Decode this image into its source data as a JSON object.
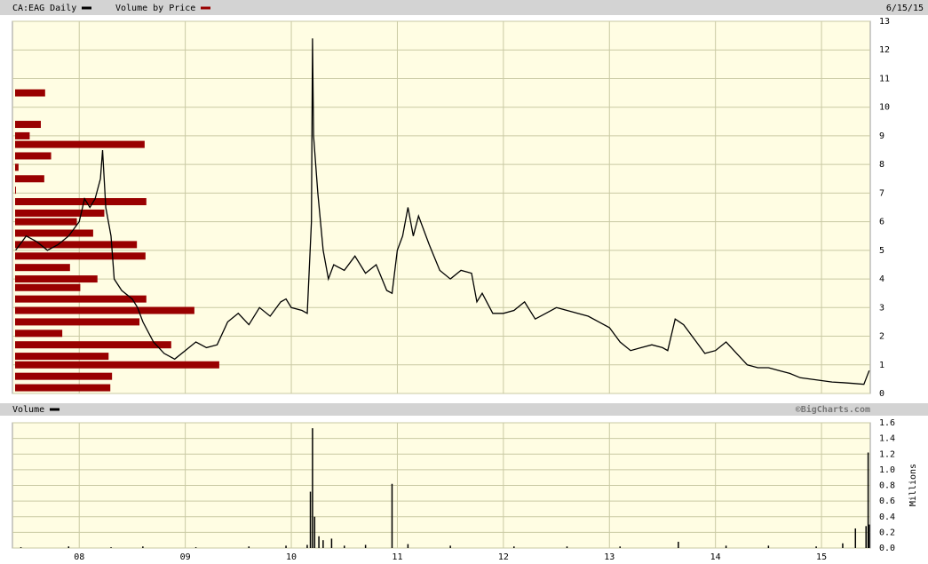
{
  "chart_data": [
    {
      "type": "line",
      "date": "6/15/15",
      "grid": true,
      "series": [
        {
          "name": "CA:EAG Daily",
          "color": "#000000",
          "x": [
            2007.4,
            2007.5,
            2007.6,
            2007.7,
            2007.8,
            2007.9,
            2008.0,
            2008.05,
            2008.1,
            2008.15,
            2008.2,
            2008.22,
            2008.25,
            2008.3,
            2008.33,
            2008.4,
            2008.5,
            2008.55,
            2008.6,
            2008.7,
            2008.8,
            2008.9,
            2009.0,
            2009.1,
            2009.2,
            2009.3,
            2009.4,
            2009.5,
            2009.6,
            2009.7,
            2009.8,
            2009.9,
            2009.95,
            2010.0,
            2010.1,
            2010.15,
            2010.19,
            2010.2,
            2010.21,
            2010.25,
            2010.3,
            2010.35,
            2010.4,
            2010.5,
            2010.6,
            2010.7,
            2010.8,
            2010.9,
            2010.95,
            2011.0,
            2011.05,
            2011.1,
            2011.15,
            2011.2,
            2011.3,
            2011.4,
            2011.5,
            2011.6,
            2011.7,
            2011.75,
            2011.8,
            2011.9,
            2012.0,
            2012.1,
            2012.2,
            2012.3,
            2012.4,
            2012.5,
            2012.6,
            2012.7,
            2012.8,
            2012.9,
            2013.0,
            2013.1,
            2013.2,
            2013.3,
            2013.4,
            2013.5,
            2013.55,
            2013.62,
            2013.7,
            2013.8,
            2013.9,
            2014.0,
            2014.1,
            2014.2,
            2014.3,
            2014.4,
            2014.5,
            2014.6,
            2014.7,
            2014.8,
            2014.9,
            2015.0,
            2015.1,
            2015.2,
            2015.3,
            2015.4,
            2015.45
          ],
          "values": [
            5.0,
            5.5,
            5.3,
            5.0,
            5.2,
            5.5,
            6.0,
            6.8,
            6.5,
            6.8,
            7.5,
            8.5,
            6.5,
            5.5,
            4.0,
            3.6,
            3.3,
            3.0,
            2.5,
            1.8,
            1.4,
            1.2,
            1.5,
            1.8,
            1.6,
            1.7,
            2.5,
            2.8,
            2.4,
            3.0,
            2.7,
            3.2,
            3.3,
            3.0,
            2.9,
            2.8,
            6.0,
            12.4,
            9.0,
            7.0,
            5.0,
            4.0,
            4.5,
            4.3,
            4.8,
            4.2,
            4.5,
            3.6,
            3.5,
            5.0,
            5.5,
            6.5,
            5.5,
            6.2,
            5.2,
            4.3,
            4.0,
            4.3,
            4.2,
            3.2,
            3.5,
            2.8,
            2.8,
            2.9,
            3.2,
            2.6,
            2.8,
            3.0,
            2.9,
            2.8,
            2.7,
            2.5,
            2.3,
            1.8,
            1.5,
            1.6,
            1.7,
            1.6,
            1.5,
            2.6,
            2.4,
            1.9,
            1.4,
            1.5,
            1.8,
            1.4,
            1.0,
            0.9,
            0.9,
            0.8,
            0.7,
            0.55,
            0.5,
            0.45,
            0.4,
            0.38,
            0.35,
            0.32,
            0.8
          ]
        }
      ],
      "profile": {
        "name": "Volume by Price",
        "color": "#990000",
        "xlim": [
          0,
          100
        ],
        "prices": [
          10.5,
          9.4,
          9.0,
          8.7,
          8.3,
          7.9,
          7.5,
          7.1,
          6.7,
          6.3,
          6.0,
          5.6,
          5.2,
          4.8,
          4.4,
          4.0,
          3.7,
          3.3,
          2.9,
          2.5,
          2.1,
          1.7,
          1.3,
          1.0,
          0.6,
          0.2
        ],
        "values": [
          3.5,
          3.0,
          1.7,
          15.1,
          4.2,
          0.4,
          3.4,
          0.1,
          15.3,
          10.4,
          7.2,
          9.1,
          14.2,
          15.2,
          6.4,
          9.6,
          7.6,
          15.3,
          20.9,
          14.5,
          5.5,
          18.2,
          10.9,
          23.8,
          11.3,
          11.1
        ]
      },
      "ylim": [
        0,
        13
      ],
      "yticks": [
        0,
        1,
        2,
        3,
        4,
        5,
        6,
        7,
        8,
        9,
        10,
        11,
        12,
        13
      ]
    },
    {
      "type": "bar",
      "credit": "©BigCharts.com",
      "ylabel": "Millions",
      "grid": true,
      "series": [
        {
          "name": "Volume",
          "color": "#000000",
          "x": [
            2007.45,
            2007.9,
            2008.3,
            2008.6,
            2009.1,
            2009.6,
            2009.95,
            2010.15,
            2010.18,
            2010.2,
            2010.22,
            2010.26,
            2010.3,
            2010.38,
            2010.5,
            2010.7,
            2010.95,
            2011.1,
            2011.5,
            2012.1,
            2012.6,
            2013.1,
            2013.65,
            2014.1,
            2014.5,
            2014.95,
            2015.2,
            2015.32,
            2015.42,
            2015.44,
            2015.45
          ],
          "values": [
            0.01,
            0.02,
            0.01,
            0.02,
            0.01,
            0.02,
            0.03,
            0.04,
            0.72,
            1.53,
            0.4,
            0.15,
            0.1,
            0.12,
            0.03,
            0.04,
            0.82,
            0.05,
            0.03,
            0.02,
            0.02,
            0.02,
            0.08,
            0.03,
            0.03,
            0.02,
            0.06,
            0.25,
            0.28,
            1.22,
            0.3
          ]
        }
      ],
      "xlim": [
        2007.37,
        2015.46
      ],
      "xticks": [
        {
          "value": 2008,
          "label": "08"
        },
        {
          "value": 2009,
          "label": "09"
        },
        {
          "value": 2010,
          "label": "10"
        },
        {
          "value": 2011,
          "label": "11"
        },
        {
          "value": 2012,
          "label": "12"
        },
        {
          "value": 2013,
          "label": "13"
        },
        {
          "value": 2014,
          "label": "14"
        },
        {
          "value": 2015,
          "label": "15"
        }
      ],
      "ylim": [
        0,
        1.6
      ],
      "yticks": [
        {
          "value": 0,
          "label": "0.0"
        },
        0.2,
        0.4,
        0.6,
        0.8,
        {
          "value": 1,
          "label": "1.0"
        },
        1.2,
        1.4,
        1.6
      ]
    }
  ]
}
